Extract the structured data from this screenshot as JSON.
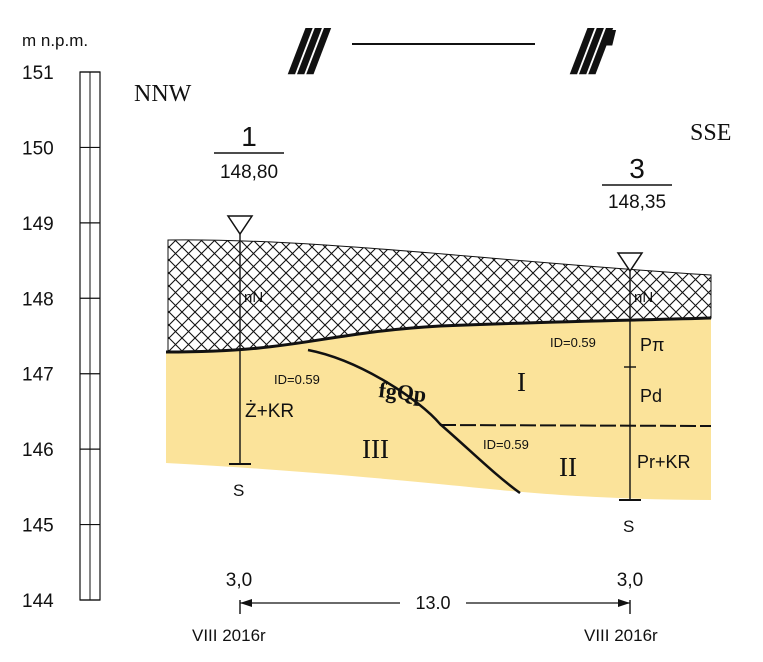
{
  "section": {
    "label_left": "///",
    "label_right": "///'"
  },
  "scale": {
    "unit": "m n.p.m.",
    "ticks": [
      "151",
      "150",
      "149",
      "148",
      "147",
      "146",
      "145",
      "144"
    ]
  },
  "directions": {
    "left": "NNW",
    "right": "SSE"
  },
  "boreholes": [
    {
      "number": "1",
      "elevation": "148,80",
      "water_mark": "nN",
      "bottom": "S",
      "depth": "3,0",
      "date": "VIII 2016r"
    },
    {
      "number": "3",
      "elevation": "148,35",
      "water_mark": "nN",
      "bottom": "S",
      "depth": "3,0",
      "date": "VIII 2016r"
    }
  ],
  "layers": {
    "boundary_label": "fgQp",
    "zones": [
      {
        "numeral": "I",
        "id_label": "ID=0.59"
      },
      {
        "numeral": "II",
        "id_label": "ID=0.59"
      },
      {
        "numeral": "III",
        "id_label": "ID=0.59"
      }
    ],
    "soils": {
      "bh1": "Ż+KR",
      "bh3_top": "Pπ",
      "bh3_mid": "Pd",
      "bh3_bottom": "Pr+KR"
    }
  },
  "distance": "13.0",
  "colors": {
    "sand": "#fbe39a",
    "ink": "#111111"
  }
}
